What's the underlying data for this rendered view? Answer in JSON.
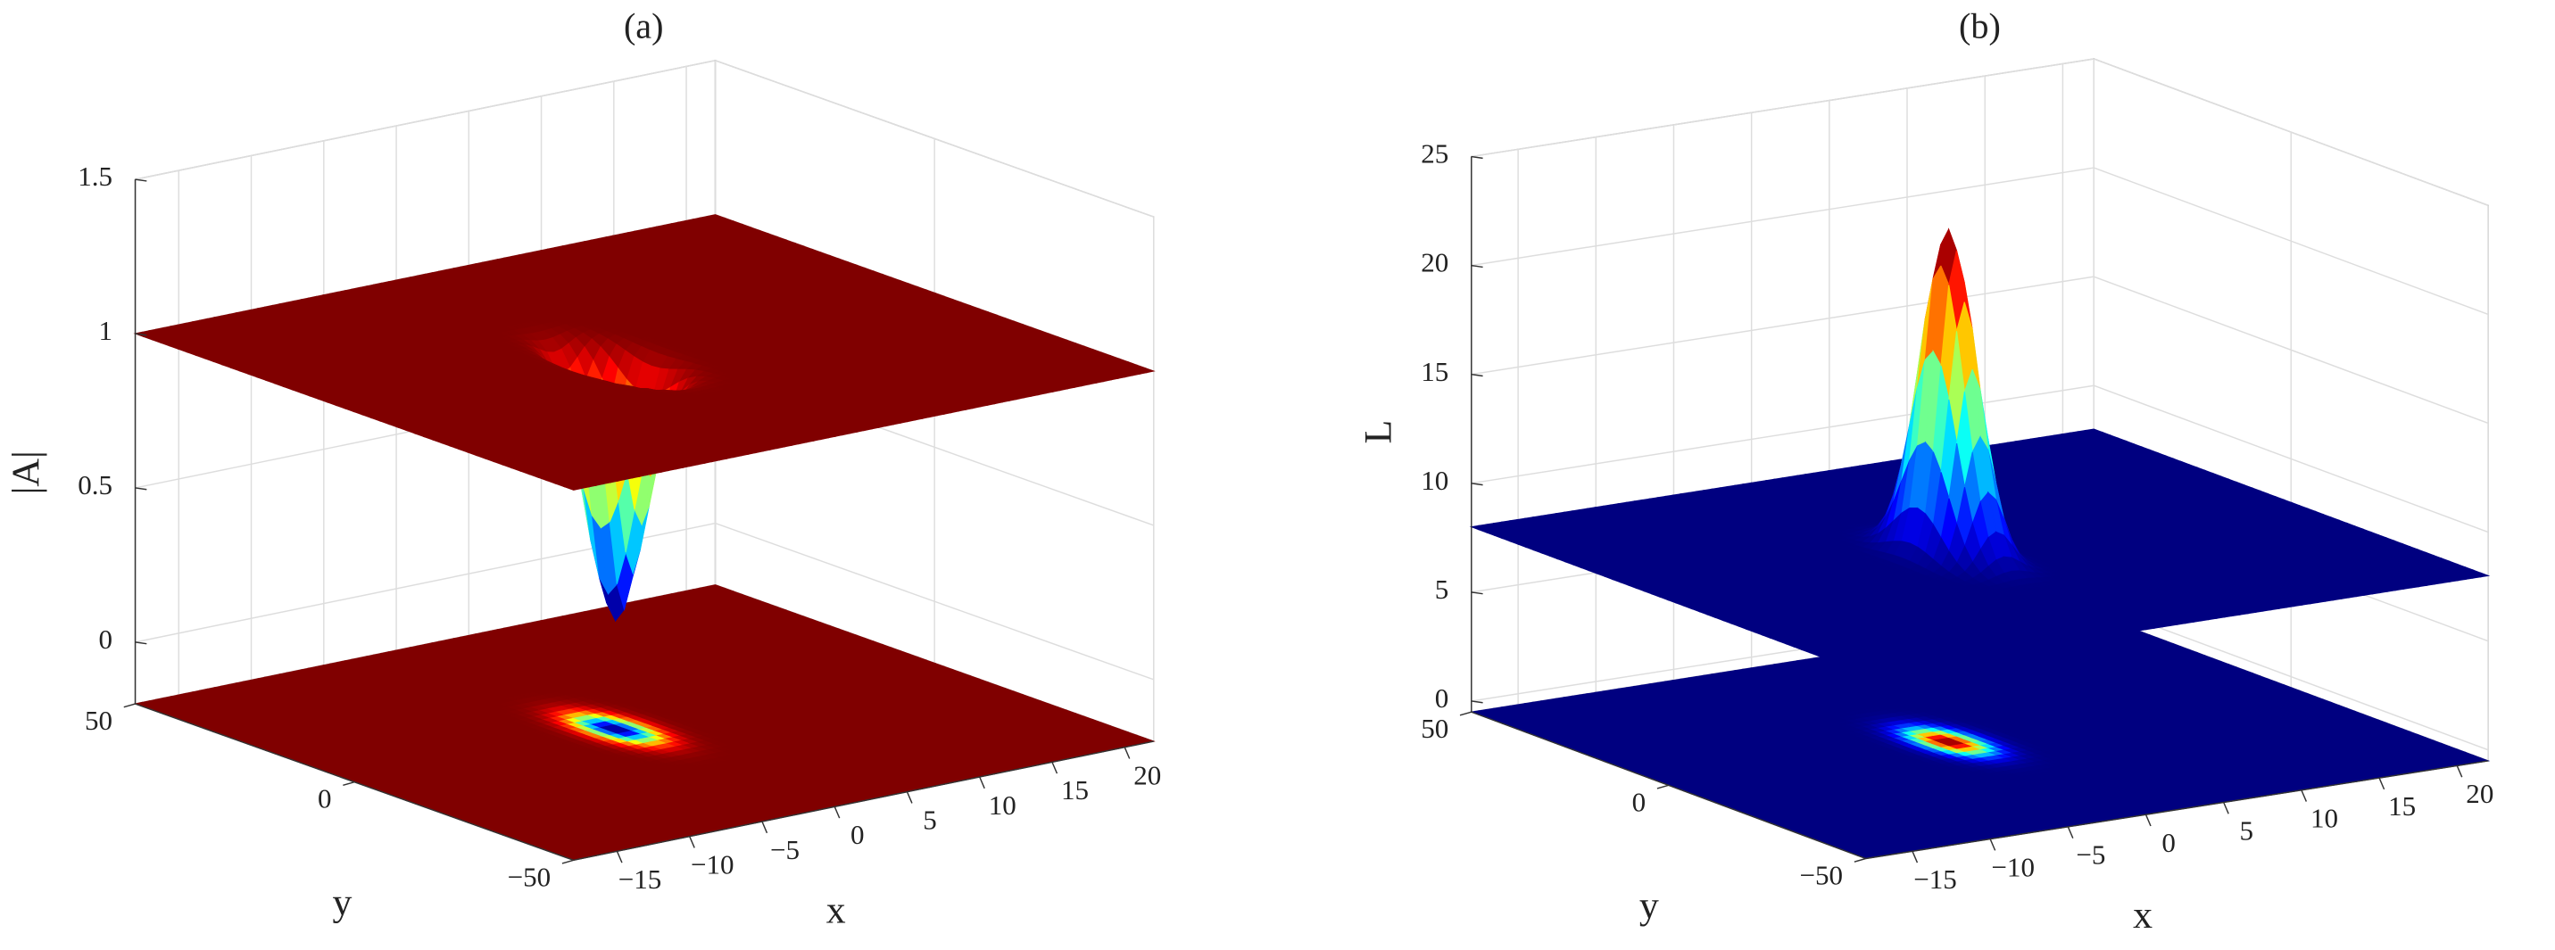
{
  "chart_data": [
    {
      "type": "surface3d",
      "title": "(a)",
      "x_label": "x",
      "y_label": "y",
      "z_label": "|A|",
      "xlim": [
        -18,
        22
      ],
      "ylim": [
        -50,
        50
      ],
      "zlim": [
        -0.2,
        1.5
      ],
      "xticks": [
        {
          "value": -15,
          "label": "−15"
        },
        {
          "value": -10,
          "label": "−10"
        },
        {
          "value": -5,
          "label": "−5"
        },
        0,
        5,
        10,
        15,
        20
      ],
      "yticks": [
        {
          "value": -50,
          "label": "−50"
        },
        0,
        50
      ],
      "zticks": [
        0,
        0.5,
        1,
        1.5
      ],
      "surface_level": 1,
      "surface_extreme": 0.15,
      "colormap": "jet",
      "grid": true
    },
    {
      "type": "surface3d",
      "title": "(b)",
      "x_label": "x",
      "y_label": "y",
      "z_label": "L",
      "xlim": [
        -18,
        22
      ],
      "ylim": [
        -50,
        50
      ],
      "zlim": [
        -0.5,
        25
      ],
      "xticks": [
        {
          "value": -15,
          "label": "−15"
        },
        {
          "value": -10,
          "label": "−10"
        },
        {
          "value": -5,
          "label": "−5"
        },
        0,
        5,
        10,
        15,
        20
      ],
      "yticks": [
        {
          "value": -50,
          "label": "−50"
        },
        0,
        50
      ],
      "zticks": [
        0,
        5,
        10,
        15,
        20,
        25
      ],
      "surface_level": 8,
      "surface_extreme": 23,
      "colormap": "jet",
      "grid": true
    }
  ]
}
